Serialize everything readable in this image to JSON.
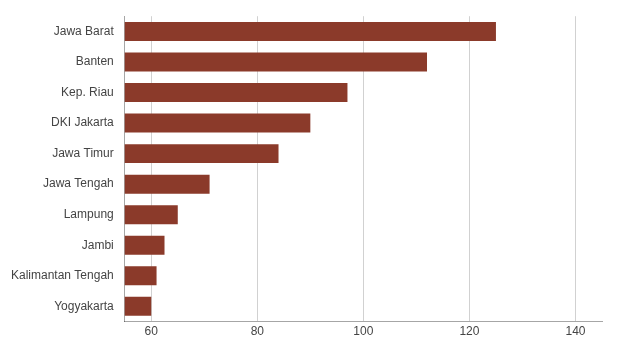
{
  "chart_data": {
    "type": "bar",
    "orientation": "horizontal",
    "categories": [
      "Yogyakarta",
      "Kalimantan Tengah",
      "Jambi",
      "Lampung",
      "Jawa Tengah",
      "Jawa Timur",
      "DKI Jakarta",
      "Kep. Riau",
      "Banten",
      "Jawa Barat"
    ],
    "values": [
      60,
      61,
      62.5,
      65,
      71,
      84,
      90,
      97,
      112,
      125
    ],
    "color": "#8b3a2a",
    "xlim": [
      55,
      145
    ],
    "xticks": [
      60,
      80,
      100,
      120,
      140
    ],
    "grid": true
  }
}
